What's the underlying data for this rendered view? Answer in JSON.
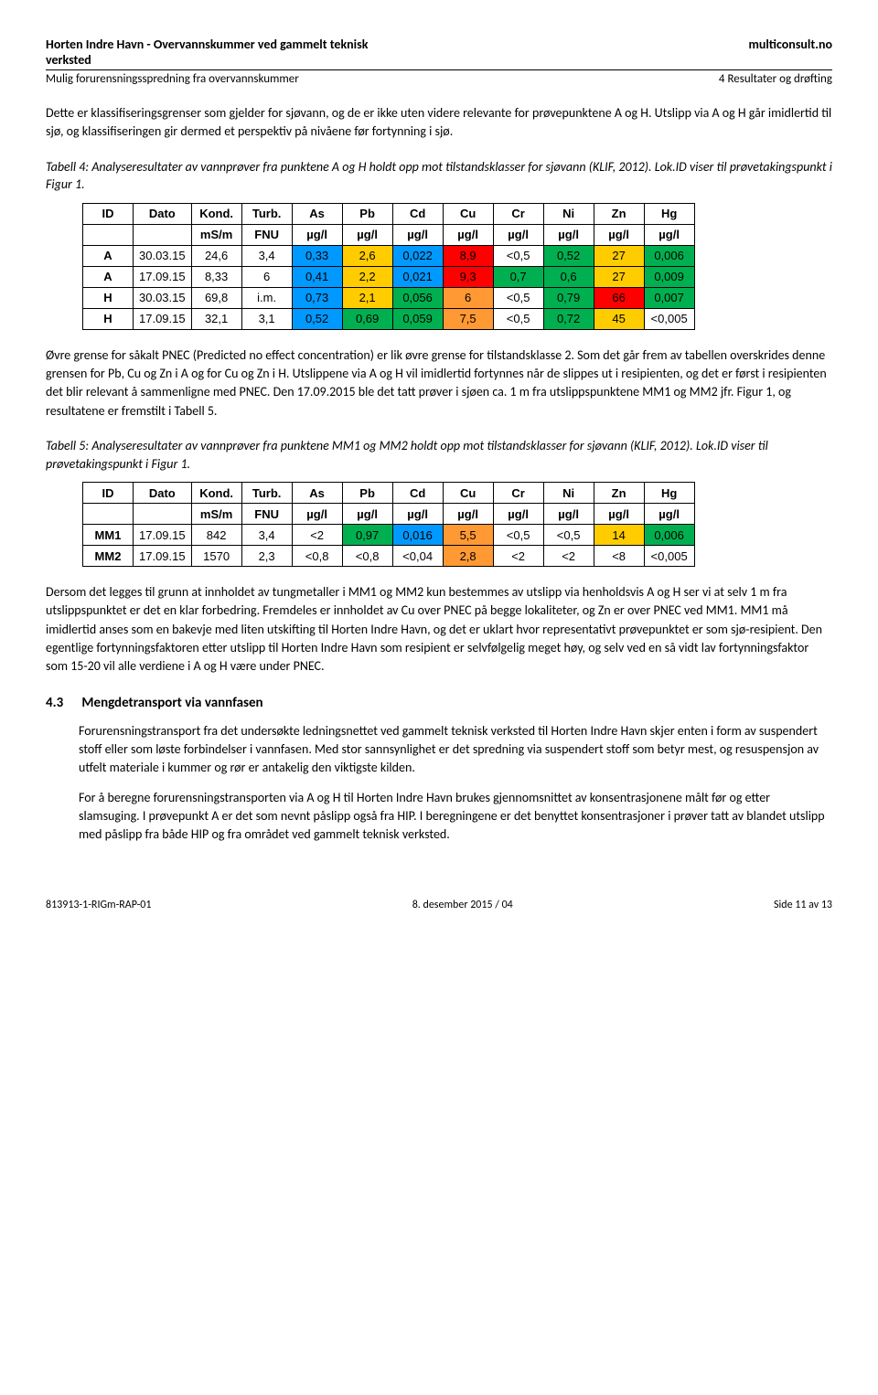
{
  "header": {
    "title_l1": "Horten Indre Havn - Overvannskummer ved gammelt teknisk",
    "title_l2": "verksted",
    "right": "multiconsult.no",
    "sub_left": "Mulig forurensningsspredning fra overvannskummer",
    "sub_right": "4 Resultater og drøfting"
  },
  "p1": "Dette er klassifiseringsgrenser som gjelder for sjøvann, og de er ikke uten videre relevante for prøvepunktene A og H. Utslipp via A og H går imidlertid til sjø, og klassifiseringen gir dermed et perspektiv på nivåene før fortynning i sjø.",
  "cap1": "Tabell 4: Analyseresultater av vannprøver fra punktene A og H holdt opp mot tilstandsklasser for sjøvann (KLIF, 2012). Lok.ID viser til prøvetakingspunkt i Figur 1.",
  "colors": {
    "blue": "#0099ff",
    "yellow": "#ffcc00",
    "green": "#00b050",
    "red": "#ff0000",
    "orange": "#ff9933"
  },
  "t4": {
    "head1": [
      "ID",
      "Dato",
      "Kond.",
      "Turb.",
      "As",
      "Pb",
      "Cd",
      "Cu",
      "Cr",
      "Ni",
      "Zn",
      "Hg"
    ],
    "head2": [
      "",
      "",
      "mS/m",
      "FNU",
      "µg/l",
      "µg/l",
      "µg/l",
      "µg/l",
      "µg/l",
      "µg/l",
      "µg/l",
      "µg/l"
    ],
    "rows": [
      {
        "id": "A",
        "dato": "30.03.15",
        "kond": "24,6",
        "turb": "3,4",
        "cells": [
          {
            "v": "0,33",
            "c": "blue"
          },
          {
            "v": "2,6",
            "c": "yellow"
          },
          {
            "v": "0,022",
            "c": "blue"
          },
          {
            "v": "8,9",
            "c": "red"
          },
          {
            "v": "<0,5",
            "c": null
          },
          {
            "v": "0,52",
            "c": "green"
          },
          {
            "v": "27",
            "c": "yellow"
          },
          {
            "v": "0,006",
            "c": "green"
          }
        ]
      },
      {
        "id": "A",
        "dato": "17.09.15",
        "kond": "8,33",
        "turb": "6",
        "cells": [
          {
            "v": "0,41",
            "c": "blue"
          },
          {
            "v": "2,2",
            "c": "yellow"
          },
          {
            "v": "0,021",
            "c": "blue"
          },
          {
            "v": "9,3",
            "c": "red"
          },
          {
            "v": "0,7",
            "c": "green"
          },
          {
            "v": "0,6",
            "c": "green"
          },
          {
            "v": "27",
            "c": "yellow"
          },
          {
            "v": "0,009",
            "c": "green"
          }
        ]
      },
      {
        "id": "H",
        "dato": "30.03.15",
        "kond": "69,8",
        "turb": "i.m.",
        "cells": [
          {
            "v": "0,73",
            "c": "blue"
          },
          {
            "v": "2,1",
            "c": "yellow"
          },
          {
            "v": "0,056",
            "c": "green"
          },
          {
            "v": "6",
            "c": "orange"
          },
          {
            "v": "<0,5",
            "c": null
          },
          {
            "v": "0,79",
            "c": "green"
          },
          {
            "v": "66",
            "c": "red"
          },
          {
            "v": "0,007",
            "c": "green"
          }
        ]
      },
      {
        "id": "H",
        "dato": "17.09.15",
        "kond": "32,1",
        "turb": "3,1",
        "cells": [
          {
            "v": "0,52",
            "c": "blue"
          },
          {
            "v": "0,69",
            "c": "green"
          },
          {
            "v": "0,059",
            "c": "green"
          },
          {
            "v": "7,5",
            "c": "orange"
          },
          {
            "v": "<0,5",
            "c": null
          },
          {
            "v": "0,72",
            "c": "green"
          },
          {
            "v": "45",
            "c": "yellow"
          },
          {
            "v": "<0,005",
            "c": null
          }
        ]
      }
    ]
  },
  "p2": "Øvre grense for såkalt PNEC (Predicted no effect concentration) er lik øvre grense for tilstandsklasse 2. Som det går frem av tabellen overskrides denne grensen for Pb, Cu og Zn i A og for Cu og Zn i H. Utslippene via A og H vil imidlertid fortynnes når de slippes ut i resipienten, og det er først i resipienten det blir relevant å sammenligne med PNEC. Den 17.09.2015 ble det tatt prøver i sjøen ca. 1 m fra utslippspunktene MM1 og MM2 jfr. Figur 1, og resultatene er fremstilt i Tabell 5.",
  "cap2": "Tabell 5: Analyseresultater av vannprøver fra punktene MM1 og MM2 holdt opp mot tilstandsklasser for sjøvann (KLIF, 2012). Lok.ID viser til prøvetakingspunkt i Figur 1.",
  "t5": {
    "head1": [
      "ID",
      "Dato",
      "Kond.",
      "Turb.",
      "As",
      "Pb",
      "Cd",
      "Cu",
      "Cr",
      "Ni",
      "Zn",
      "Hg"
    ],
    "head2": [
      "",
      "",
      "mS/m",
      "FNU",
      "µg/l",
      "µg/l",
      "µg/l",
      "µg/l",
      "µg/l",
      "µg/l",
      "µg/l",
      "µg/l"
    ],
    "rows": [
      {
        "id": "MM1",
        "dato": "17.09.15",
        "kond": "842",
        "turb": "3,4",
        "cells": [
          {
            "v": "<2",
            "c": null
          },
          {
            "v": "0,97",
            "c": "green"
          },
          {
            "v": "0,016",
            "c": "blue"
          },
          {
            "v": "5,5",
            "c": "orange"
          },
          {
            "v": "<0,5",
            "c": null
          },
          {
            "v": "<0,5",
            "c": null
          },
          {
            "v": "14",
            "c": "yellow"
          },
          {
            "v": "0,006",
            "c": "green"
          }
        ]
      },
      {
        "id": "MM2",
        "dato": "17.09.15",
        "kond": "1570",
        "turb": "2,3",
        "cells": [
          {
            "v": "<0,8",
            "c": null
          },
          {
            "v": "<0,8",
            "c": null
          },
          {
            "v": "<0,04",
            "c": null
          },
          {
            "v": "2,8",
            "c": "orange"
          },
          {
            "v": "<2",
            "c": null
          },
          {
            "v": "<2",
            "c": null
          },
          {
            "v": "<8",
            "c": null
          },
          {
            "v": "<0,005",
            "c": null
          }
        ]
      }
    ]
  },
  "p3": "Dersom det legges til grunn at innholdet av tungmetaller i MM1 og MM2 kun bestemmes av utslipp via henholdsvis A og H ser vi at selv 1 m fra utslippspunktet er det en klar forbedring. Fremdeles er innholdet av Cu over PNEC på begge lokaliteter, og Zn er over PNEC ved MM1. MM1 må imidlertid anses som en bakevje med liten utskifting til Horten Indre Havn, og det er uklart hvor representativt prøvepunktet er som sjø-resipient. Den egentlige fortynningsfaktoren etter utslipp til Horten Indre Havn som resipient er selvfølgelig meget høy, og selv ved en så vidt lav fortynningsfaktor som 15-20 vil alle verdiene i A og H være under PNEC.",
  "section": {
    "num": "4.3",
    "title": "Mengdetransport via vannfasen"
  },
  "p4": "Forurensningstransport fra det undersøkte ledningsnettet ved gammelt teknisk verksted til Horten Indre Havn skjer enten i form av suspendert stoff eller som løste forbindelser i vannfasen. Med stor sannsynlighet er det spredning via suspendert stoff som betyr mest, og resuspensjon av utfelt materiale i kummer og rør er antakelig den viktigste kilden.",
  "p5": "For å beregne forurensningstransporten via A og H til Horten Indre Havn brukes gjennomsnittet av konsentrasjonene målt før og etter slamsuging. I prøvepunkt A er det som nevnt påslipp også fra HIP. I beregningene er det benyttet konsentrasjoner i prøver tatt av blandet utslipp med påslipp fra både HIP og fra området ved gammelt teknisk verksted.",
  "footer": {
    "left": "813913-1-RIGm-RAP-01",
    "center": "8. desember 2015 / 04",
    "right": "Side 11 av 13"
  }
}
